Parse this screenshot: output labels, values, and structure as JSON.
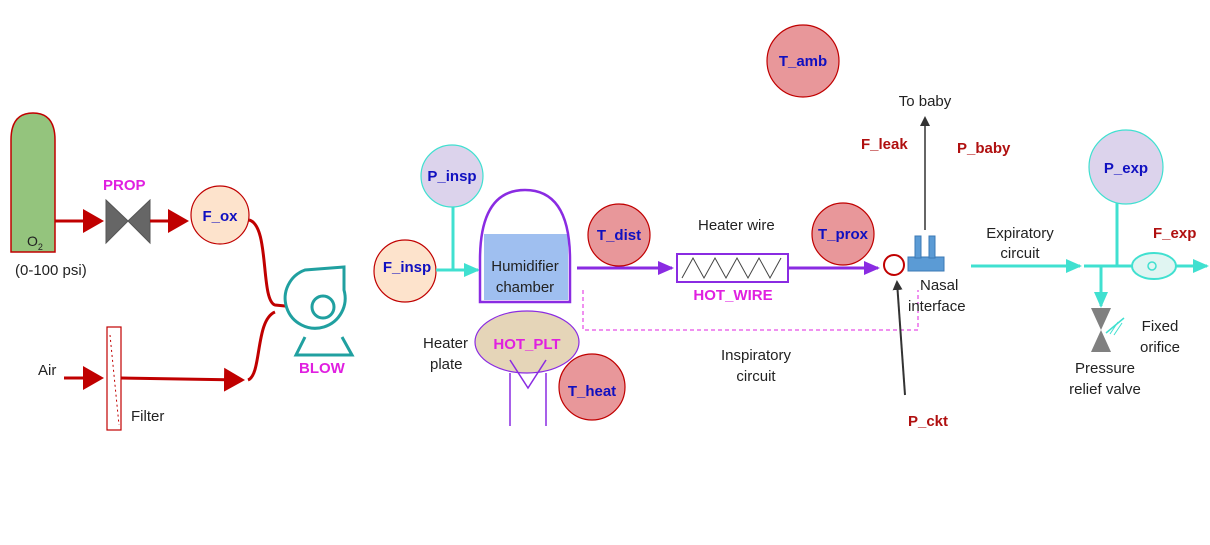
{
  "colors": {
    "oxygen_tank": "#94c47d",
    "flow_line": "#c00000",
    "insp_line": "#8a2be2",
    "exp_line": "#40e0d0",
    "magenta": "#e020e0",
    "blue_text": "#1010c0",
    "red_text": "#b01010",
    "sensor_orange": "#fde3cc",
    "sensor_lavender": "#dcd3ec",
    "sensor_rose": "#e8979a",
    "water": "#9fbff0",
    "heater_plate": "#e5d5b8",
    "nasal": "#5b9bd5"
  },
  "source": {
    "o2_label": "O",
    "o2_sub": "2",
    "o2_range": "(0-100 psi)",
    "air_label": "Air",
    "filter_label": "Filter"
  },
  "tags": {
    "prop": "PROP",
    "blow": "BLOW",
    "hot_wire": "HOT_WIRE",
    "hot_plt": "HOT_PLT"
  },
  "sensors": {
    "f_ox": "F_ox",
    "f_insp": "F_insp",
    "p_insp": "P_insp",
    "t_dist": "T_dist",
    "t_prox": "T_prox",
    "t_amb": "T_amb",
    "t_heat": "T_heat",
    "p_exp": "P_exp",
    "f_leak": "F_leak",
    "p_baby": "P_baby",
    "f_exp": "F_exp",
    "p_ckt": "P_ckt"
  },
  "labels": {
    "humidifier_1": "Humidifier",
    "humidifier_2": "chamber",
    "heater_plate_1": "Heater",
    "heater_plate_2": "plate",
    "heater_wire": "Heater wire",
    "insp_circuit_1": "Inspiratory",
    "insp_circuit_2": "circuit",
    "to_baby": "To baby",
    "nasal_1": "Nasal",
    "nasal_2": "interface",
    "exp_circuit_1": "Expiratory",
    "exp_circuit_2": "circuit",
    "fixed_orifice_1": "Fixed",
    "fixed_orifice_2": "orifice",
    "relief_1": "Pressure",
    "relief_2": "relief valve"
  }
}
